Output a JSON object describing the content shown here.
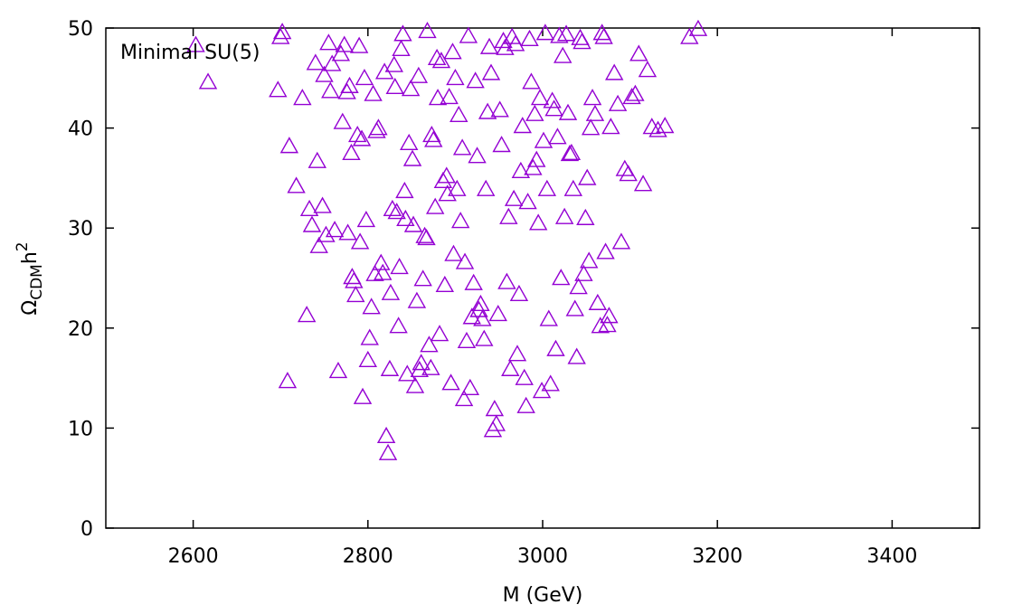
{
  "chart_data": {
    "type": "scatter",
    "title": "",
    "annotation": "Minimal SU(5)",
    "xlabel": "M (GeV)",
    "ylabel_main": "Ω",
    "ylabel_sub": "CDM",
    "ylabel_tail": "h",
    "ylabel_sup": "2",
    "xlim": [
      2500,
      3500
    ],
    "ylim": [
      0,
      50
    ],
    "xticks": [
      2600,
      2800,
      3000,
      3200,
      3400
    ],
    "yticks": [
      0,
      10,
      20,
      30,
      40,
      50
    ],
    "marker": "open-triangle",
    "color": "#9400d3",
    "grid": false,
    "series": [
      {
        "x": [
          2603,
          2617,
          2697,
          2700,
          2702,
          2708,
          2710,
          2718,
          2725,
          2730,
          2733,
          2736,
          2740,
          2742,
          2744,
          2748,
          2750,
          2752,
          2755,
          2757,
          2759,
          2762,
          2766,
          2769,
          2771,
          2773,
          2776,
          2777,
          2779,
          2781,
          2782,
          2784,
          2786,
          2788,
          2790,
          2791,
          2793,
          2794,
          2796,
          2798,
          2800,
          2802,
          2804,
          2806,
          2808,
          2810,
          2812,
          2815,
          2817,
          2819,
          2821,
          2823,
          2825,
          2826,
          2828,
          2830,
          2831,
          2833,
          2835,
          2836,
          2838,
          2840,
          2842,
          2843,
          2845,
          2847,
          2849,
          2851,
          2852,
          2854,
          2856,
          2858,
          2859,
          2861,
          2863,
          2865,
          2867,
          2868,
          2870,
          2872,
          2873,
          2875,
          2877,
          2879,
          2880,
          2882,
          2884,
          2886,
          2888,
          2890,
          2891,
          2893,
          2895,
          2897,
          2898,
          2900,
          2902,
          2904,
          2906,
          2908,
          2910,
          2911,
          2913,
          2915,
          2917,
          2919,
          2921,
          2923,
          2925,
          2927,
          2929,
          2931,
          2933,
          2935,
          2937,
          2939,
          2941,
          2943,
          2945,
          2947,
          2949,
          2951,
          2953,
          2955,
          2957,
          2959,
          2961,
          2963,
          2965,
          2967,
          2969,
          2971,
          2973,
          2975,
          2977,
          2979,
          2981,
          2983,
          2985,
          2987,
          2989,
          2991,
          2993,
          2995,
          2997,
          2999,
          3001,
          3003,
          3005,
          3007,
          3009,
          3011,
          3013,
          3015,
          3017,
          3019,
          3021,
          3023,
          3025,
          3027,
          3029,
          3031,
          3033,
          3035,
          3037,
          3039,
          3041,
          3043,
          3045,
          3047,
          3049,
          3051,
          3053,
          3055,
          3057,
          3060,
          3063,
          3066,
          3068,
          3070,
          3072,
          3074,
          3076,
          3078,
          3082,
          3086,
          3090,
          3094,
          3098,
          3102,
          3106,
          3110,
          3115,
          3120,
          3125,
          3132,
          3140,
          3168,
          3178
        ],
        "y": [
          48.2,
          44.5,
          43.7,
          49.0,
          49.5,
          14.6,
          38.1,
          34.1,
          42.9,
          21.2,
          31.8,
          30.2,
          46.4,
          36.6,
          28.1,
          32.1,
          45.2,
          29.2,
          48.4,
          43.6,
          46.3,
          29.7,
          15.6,
          47.3,
          40.5,
          48.2,
          43.5,
          29.4,
          44.1,
          37.4,
          25.0,
          24.6,
          23.2,
          39.2,
          48.1,
          28.5,
          38.8,
          13.0,
          44.9,
          30.7,
          16.7,
          18.9,
          22.0,
          43.3,
          25.3,
          39.6,
          39.9,
          26.4,
          25.4,
          45.5,
          9.1,
          7.4,
          15.8,
          23.4,
          31.8,
          46.2,
          44.0,
          31.5,
          20.1,
          26.0,
          47.8,
          49.3,
          33.6,
          30.8,
          15.3,
          38.4,
          43.8,
          36.8,
          30.2,
          14.1,
          22.6,
          45.1,
          15.7,
          16.4,
          24.8,
          29.1,
          28.9,
          49.6,
          18.2,
          15.9,
          39.2,
          38.7,
          32.0,
          46.9,
          42.9,
          19.3,
          46.6,
          34.6,
          24.2,
          35.1,
          33.3,
          43.0,
          14.4,
          47.5,
          27.3,
          44.9,
          33.8,
          41.2,
          30.6,
          37.9,
          12.8,
          26.5,
          18.6,
          49.1,
          13.9,
          21.0,
          24.4,
          44.6,
          37.1,
          21.7,
          22.3,
          20.8,
          18.8,
          33.8,
          41.5,
          48.0,
          45.4,
          9.7,
          11.8,
          10.3,
          21.3,
          41.7,
          38.2,
          48.6,
          47.9,
          24.5,
          31.0,
          15.8,
          49.0,
          32.8,
          48.3,
          17.3,
          23.3,
          35.6,
          40.1,
          14.9,
          12.1,
          32.5,
          48.8,
          44.5,
          35.9,
          41.3,
          36.7,
          30.4,
          42.9,
          13.6,
          38.6,
          49.4,
          33.8,
          20.8,
          14.3,
          42.6,
          41.8,
          17.8,
          39.0,
          49.1,
          24.9,
          47.1,
          31.0,
          49.3,
          41.4,
          37.3,
          37.4,
          33.8,
          21.8,
          17.0,
          24.0,
          48.9,
          48.5,
          25.3,
          30.9,
          34.9,
          26.6,
          39.9,
          42.9,
          41.3,
          22.4,
          20.1,
          49.4,
          49.0,
          27.5,
          20.2,
          21.1,
          40.0,
          45.4,
          42.3,
          28.5,
          35.8,
          35.3,
          43.0,
          43.3,
          47.3,
          34.3,
          45.7,
          40.0,
          39.7,
          40.1,
          49.0,
          49.8
        ]
      }
    ]
  }
}
